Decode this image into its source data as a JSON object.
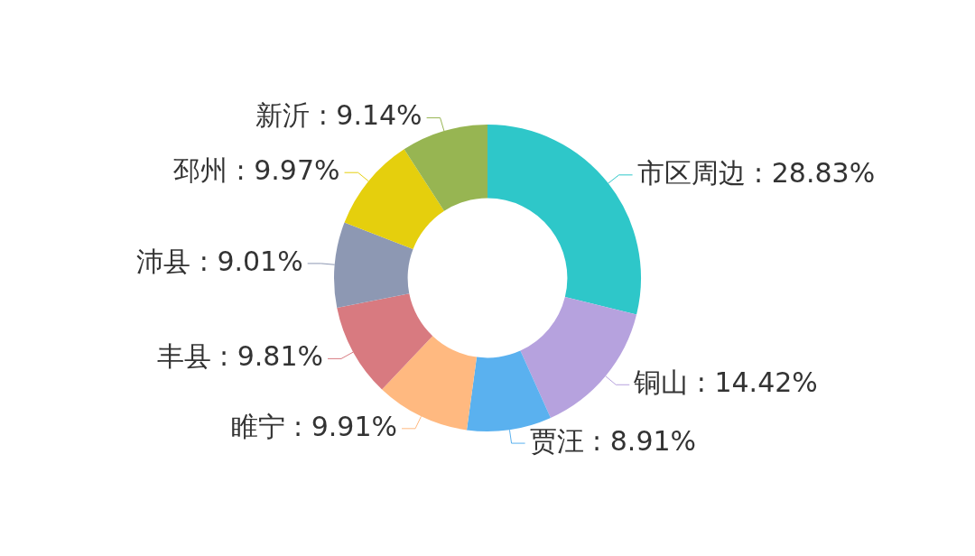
{
  "chart_data": {
    "type": "donut",
    "categories": [
      "市区周边",
      "铜山",
      "贾汪",
      "睢宁",
      "丰县",
      "沛县",
      "邳州",
      "新沂"
    ],
    "values": [
      28.83,
      14.42,
      8.91,
      9.91,
      9.81,
      9.01,
      9.97,
      9.14
    ],
    "value_labels": [
      "28.83%",
      "14.42%",
      "8.91%",
      "9.91%",
      "9.81%",
      "9.01%",
      "9.97%",
      "9.14%"
    ],
    "colors": [
      "#2ec7c9",
      "#b6a2de",
      "#5ab1ef",
      "#ffb980",
      "#d87a80",
      "#8d98b3",
      "#e5cf0d",
      "#97b552"
    ],
    "legend": false
  }
}
